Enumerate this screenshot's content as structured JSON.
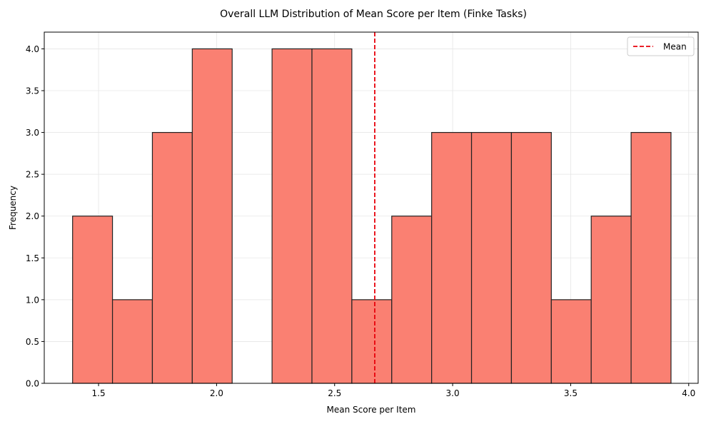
{
  "chart_data": {
    "type": "bar",
    "subtype": "histogram",
    "title": "Overall LLM Distribution of Mean Score per Item (Finke Tasks)",
    "xlabel": "Mean Score per Item",
    "ylabel": "Frequency",
    "xlim": [
      1.27,
      4.04
    ],
    "ylim": [
      0,
      4.2
    ],
    "xticks": [
      1.5,
      2.0,
      2.5,
      3.0,
      3.5,
      4.0
    ],
    "xtick_labels": [
      "1.5",
      "2.0",
      "2.5",
      "3.0",
      "3.5",
      "4.0"
    ],
    "yticks": [
      0.0,
      0.5,
      1.0,
      1.5,
      2.0,
      2.5,
      3.0,
      3.5,
      4.0
    ],
    "ytick_labels": [
      "0.0",
      "0.5",
      "1.0",
      "1.5",
      "2.0",
      "2.5",
      "3.0",
      "3.5",
      "4.0"
    ],
    "bin_edges": [
      1.39,
      1.559,
      1.728,
      1.897,
      2.066,
      2.235,
      2.404,
      2.573,
      2.742,
      2.911,
      3.08,
      3.249,
      3.418,
      3.587,
      3.756,
      3.925
    ],
    "counts": [
      2,
      1,
      3,
      4,
      0,
      4,
      4,
      1,
      2,
      3,
      3,
      3,
      1,
      2,
      3
    ],
    "bar_color": "#fa8072",
    "edge_color": "#222222",
    "grid": true,
    "mean_line": {
      "label": "Mean",
      "x": 2.67,
      "color": "#e8000b",
      "style": "dashed"
    },
    "legend": {
      "position": "top-right",
      "entries": [
        "Mean"
      ]
    }
  }
}
